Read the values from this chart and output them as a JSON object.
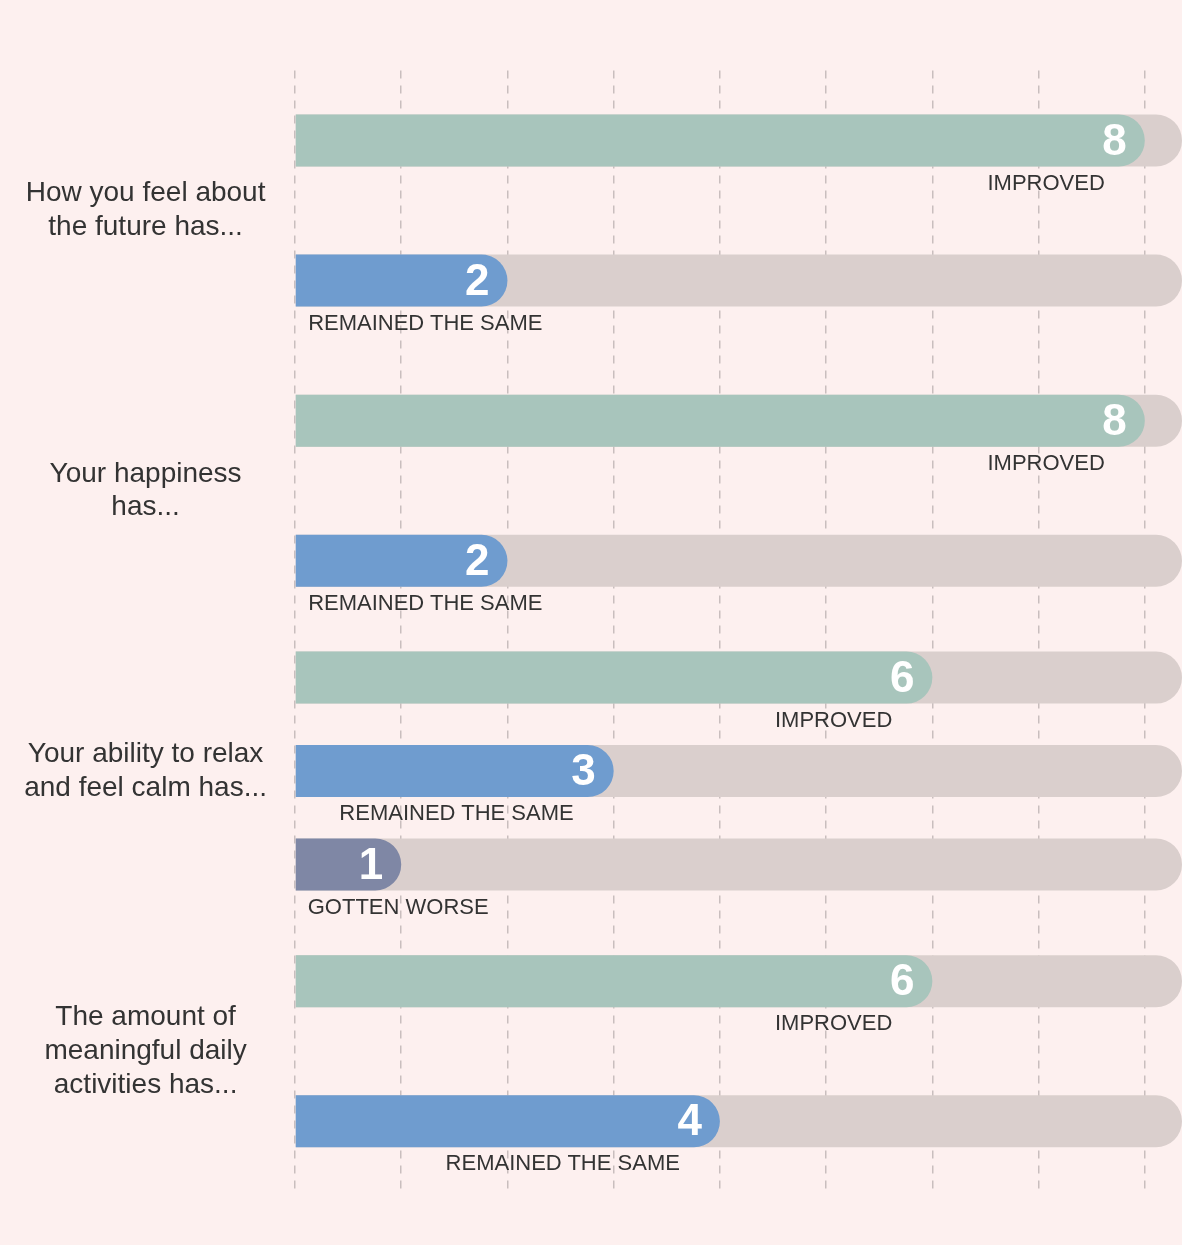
{
  "chart_data": {
    "type": "bar",
    "orientation": "horizontal",
    "categories": [
      "How you feel about the future has...",
      "Your happiness has...",
      "Your ability to relax and feel calm has...",
      "The amount of meaningful daily activities has..."
    ],
    "series": [
      {
        "name": "IMPROVED",
        "color": "#a8c5bc",
        "values": [
          8,
          8,
          6,
          6
        ]
      },
      {
        "name": "REMAINED THE SAME",
        "color": "#6f9ccf",
        "values": [
          2,
          2,
          3,
          4
        ]
      },
      {
        "name": "GOTTEN WORSE",
        "color": "#7f87a5",
        "values": [
          null,
          null,
          1,
          null
        ]
      }
    ],
    "xlim": [
      0,
      8.35
    ],
    "xticks": [
      {
        "value": 0,
        "label": null
      },
      {
        "value": 1,
        "label": null
      },
      {
        "value": 2,
        "label": null
      },
      {
        "value": 3,
        "label": null
      },
      {
        "value": 4,
        "label": null
      },
      {
        "value": 5,
        "label": null
      },
      {
        "value": 6,
        "label": null
      },
      {
        "value": 7,
        "label": null
      },
      {
        "value": 8,
        "label": null
      }
    ],
    "grid": "x",
    "tick_labels": "y",
    "legend": false,
    "data_labels": true
  }
}
